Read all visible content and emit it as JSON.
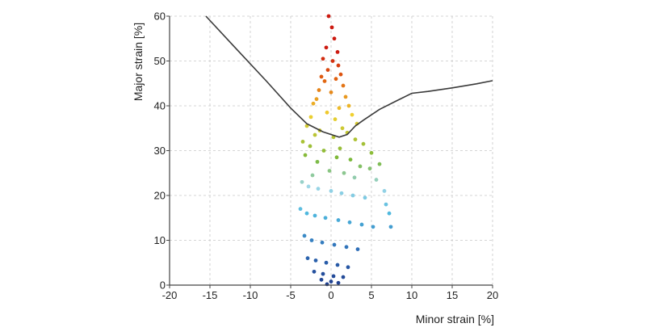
{
  "chart_data": {
    "type": "scatter",
    "title": "",
    "xlabel": "Minor strain [%]",
    "ylabel": "Major strain [%]",
    "xlim": [
      -20,
      20
    ],
    "ylim": [
      0,
      60
    ],
    "x_ticks": [
      -20,
      -15,
      -10,
      -5,
      0,
      5,
      10,
      15,
      20
    ],
    "y_ticks": [
      0,
      10,
      20,
      30,
      40,
      50,
      60
    ],
    "x_tick_labels": [
      "-20",
      "-15",
      "-10",
      "-5",
      "0",
      "5",
      "10",
      "15",
      "20"
    ],
    "y_tick_labels": [
      "0",
      "10",
      "20",
      "30",
      "40",
      "50",
      "60"
    ],
    "grid": "dashed-vertical-and-horizontal",
    "legend": "none",
    "colormap": {
      "scale": "major strain",
      "stops": [
        "#1f3f8f",
        "#2f6fb8",
        "#4fb8de",
        "#9ed6e6",
        "#7ab83a",
        "#f0d030",
        "#e06010",
        "#cc1a10"
      ]
    },
    "series": [
      {
        "kind": "forming-limit-curve",
        "color": "#3a3a3a",
        "x": [
          -15.5,
          -12.0,
          -8.0,
          -5.0,
          -3.0,
          -1.0,
          1.0,
          2.0,
          3.0,
          4.0,
          6.0,
          8.0,
          10.0,
          12.0,
          15.0,
          18.0,
          20.0
        ],
        "y": [
          60.0,
          53.2,
          45.5,
          39.5,
          36.0,
          34.2,
          33.0,
          33.6,
          35.5,
          36.8,
          39.2,
          41.0,
          42.8,
          43.2,
          44.0,
          44.9,
          45.6
        ]
      },
      {
        "kind": "strain-point-cloud",
        "color": "colormap",
        "x": [
          -0.3,
          0.1,
          0.4,
          -0.6,
          0.8,
          -1.0,
          0.2,
          0.9,
          -0.4,
          1.2,
          -1.2,
          0.6,
          -0.8,
          1.5,
          -1.5,
          0.0,
          1.8,
          -1.8,
          2.2,
          -2.2,
          1.0,
          -0.5,
          2.6,
          -2.5,
          0.5,
          3.2,
          -3.0,
          1.4,
          -1.4,
          2.0,
          -2.0,
          0.3,
          3.0,
          -3.5,
          4.0,
          -2.6,
          1.1,
          -0.9,
          5.0,
          -3.2,
          0.7,
          2.4,
          -1.7,
          6.0,
          3.6,
          4.8,
          -0.2,
          1.6,
          -2.3,
          2.9,
          5.6,
          6.6,
          7.2,
          -3.6,
          -2.8,
          -1.6,
          0.0,
          1.3,
          2.7,
          4.2,
          6.8,
          7.4,
          -3.8,
          -3.0,
          -2.0,
          -0.7,
          0.9,
          2.3,
          3.8,
          5.2,
          -3.3,
          -2.4,
          -1.1,
          0.4,
          1.9,
          3.3,
          -2.9,
          -1.9,
          -0.6,
          0.8,
          2.1,
          -2.1,
          -1.0,
          0.3,
          1.5,
          -1.2,
          0.0,
          0.9,
          -0.5
        ],
        "y": [
          60.0,
          57.5,
          55.0,
          53.0,
          52.0,
          50.5,
          50.0,
          49.0,
          48.0,
          47.0,
          46.5,
          46.0,
          45.5,
          44.5,
          43.5,
          43.0,
          42.0,
          41.5,
          40.0,
          40.5,
          39.5,
          38.5,
          38.0,
          37.5,
          37.0,
          36.0,
          35.5,
          35.0,
          34.5,
          34.0,
          33.5,
          33.0,
          32.5,
          32.0,
          31.5,
          31.0,
          30.5,
          30.0,
          29.5,
          29.0,
          28.5,
          28.0,
          27.5,
          27.0,
          26.5,
          26.0,
          25.5,
          25.0,
          24.5,
          24.0,
          23.5,
          21.0,
          16.0,
          23.0,
          22.0,
          21.5,
          21.0,
          20.5,
          20.0,
          19.5,
          18.0,
          13.0,
          17.0,
          16.0,
          15.5,
          15.0,
          14.5,
          14.0,
          13.5,
          13.0,
          11.0,
          10.0,
          9.5,
          9.0,
          8.5,
          8.0,
          6.0,
          5.5,
          5.0,
          4.5,
          4.0,
          3.0,
          2.5,
          2.0,
          1.8,
          1.2,
          0.8,
          0.5,
          0.2
        ]
      }
    ]
  }
}
